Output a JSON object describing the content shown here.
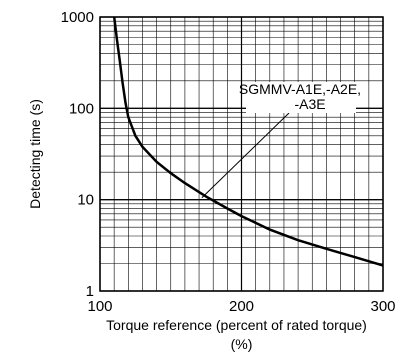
{
  "chart_data": {
    "type": "line",
    "title": "",
    "xlabel": "Torque reference (percent of rated torque)",
    "xlabel_unit": "(%)",
    "ylabel": "Detecting time (s)",
    "xlim": [
      100,
      300
    ],
    "ylim": [
      1,
      1000
    ],
    "yscale": "log",
    "grid": true,
    "x_ticks": [
      100,
      200,
      300
    ],
    "x_tick_labels": [
      "100",
      "200",
      "300"
    ],
    "y_ticks": [
      1,
      10,
      100,
      1000
    ],
    "y_tick_labels": [
      "1",
      "10",
      "100",
      "1000"
    ],
    "colors": {
      "curve": "#000000",
      "grid": "#000000",
      "background": "#ffffff"
    },
    "series": [
      {
        "x": [
          110,
          112,
          114,
          116,
          118,
          120,
          125,
          130,
          140,
          150,
          160,
          175,
          190,
          200,
          220,
          240,
          260,
          280,
          300
        ],
        "y": [
          1000,
          560,
          330,
          190,
          115,
          80,
          50,
          38,
          26,
          19.5,
          15.2,
          10.8,
          8.0,
          6.6,
          4.7,
          3.6,
          2.9,
          2.35,
          1.9
        ]
      }
    ],
    "annotations": [
      {
        "lines": [
          "SGMMV-A1E,-A2E,",
          "-A3E"
        ],
        "points_to": {
          "x": 172,
          "y": 10.5
        }
      }
    ]
  }
}
